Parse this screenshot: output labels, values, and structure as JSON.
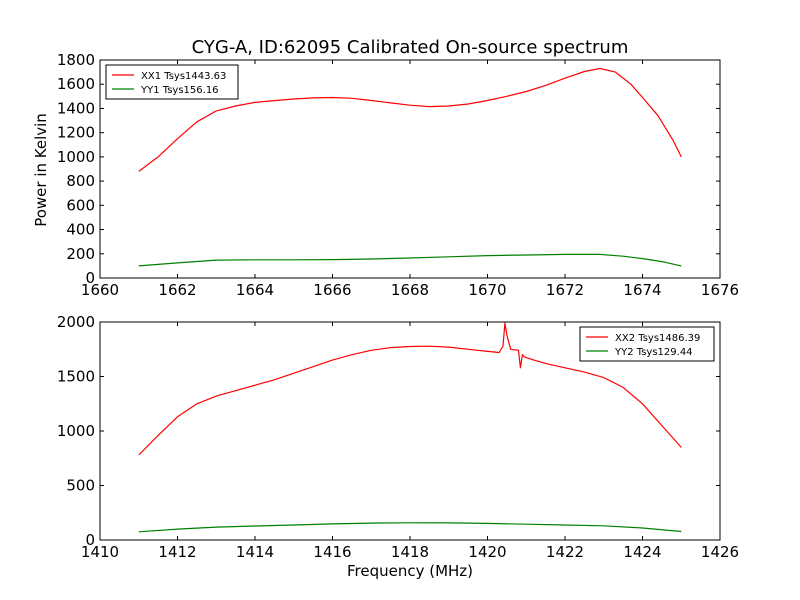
{
  "figure_title": "CYG-A, ID:62095 Calibrated On-source spectrum",
  "colors": {
    "red": "#ff0000",
    "green": "#008000",
    "axis": "#000000",
    "background": "#ffffff"
  },
  "chart_data": [
    {
      "type": "line",
      "title": "CYG-A, ID:62095 Calibrated On-source spectrum",
      "xlabel": "",
      "ylabel": "Power in Kelvin",
      "xlim": [
        1660,
        1676
      ],
      "ylim": [
        0,
        1800
      ],
      "xticks": [
        1660,
        1662,
        1664,
        1666,
        1668,
        1670,
        1672,
        1674,
        1676
      ],
      "yticks": [
        0,
        200,
        400,
        600,
        800,
        1000,
        1200,
        1400,
        1600,
        1800
      ],
      "grid": false,
      "legend_position": "top-left",
      "series": [
        {
          "name": "XX1 Tsys1443.63",
          "color": "#ff0000",
          "x": [
            1661.0,
            1661.5,
            1662.0,
            1662.5,
            1663.0,
            1663.5,
            1664.0,
            1664.5,
            1665.0,
            1665.5,
            1666.0,
            1666.5,
            1667.0,
            1667.5,
            1668.0,
            1668.5,
            1669.0,
            1669.5,
            1670.0,
            1670.5,
            1671.0,
            1671.5,
            1672.0,
            1672.5,
            1672.9,
            1673.3,
            1673.7,
            1674.0,
            1674.4,
            1674.8,
            1675.0
          ],
          "y": [
            880,
            1000,
            1150,
            1290,
            1380,
            1420,
            1450,
            1465,
            1478,
            1487,
            1490,
            1484,
            1466,
            1446,
            1427,
            1415,
            1420,
            1437,
            1466,
            1500,
            1540,
            1590,
            1650,
            1705,
            1730,
            1700,
            1600,
            1490,
            1340,
            1130,
            1000
          ]
        },
        {
          "name": "YY1 Tsys156.16",
          "color": "#008000",
          "x": [
            1661.0,
            1662.0,
            1663.0,
            1664.0,
            1665.0,
            1666.0,
            1667.0,
            1668.0,
            1669.0,
            1670.0,
            1671.0,
            1672.0,
            1672.9,
            1673.5,
            1674.0,
            1674.5,
            1675.0
          ],
          "y": [
            100,
            125,
            148,
            150,
            150,
            152,
            157,
            165,
            175,
            185,
            190,
            195,
            195,
            180,
            160,
            135,
            100
          ]
        }
      ]
    },
    {
      "type": "line",
      "title": "",
      "xlabel": "Frequency (MHz)",
      "ylabel": "",
      "xlim": [
        1410,
        1426
      ],
      "ylim": [
        0,
        2000
      ],
      "xticks": [
        1410,
        1412,
        1414,
        1416,
        1418,
        1420,
        1422,
        1424,
        1426
      ],
      "yticks": [
        0,
        500,
        1000,
        1500,
        2000
      ],
      "grid": false,
      "legend_position": "top-right",
      "series": [
        {
          "name": "XX2 Tsys1486.39",
          "color": "#ff0000",
          "x": [
            1411.0,
            1411.5,
            1412.0,
            1412.5,
            1413.0,
            1413.5,
            1414.0,
            1414.5,
            1415.0,
            1415.5,
            1416.0,
            1416.5,
            1417.0,
            1417.5,
            1418.0,
            1418.5,
            1419.0,
            1419.5,
            1420.0,
            1420.3,
            1420.4,
            1420.45,
            1420.5,
            1420.6,
            1420.8,
            1420.85,
            1420.9,
            1420.95,
            1421.2,
            1421.5,
            1422.0,
            1422.5,
            1423.0,
            1423.5,
            1424.0,
            1424.5,
            1425.0
          ],
          "y": [
            780,
            960,
            1130,
            1250,
            1320,
            1370,
            1420,
            1470,
            1530,
            1590,
            1650,
            1700,
            1740,
            1765,
            1775,
            1778,
            1770,
            1750,
            1730,
            1720,
            1780,
            1990,
            1880,
            1750,
            1740,
            1580,
            1700,
            1680,
            1650,
            1620,
            1580,
            1540,
            1490,
            1400,
            1250,
            1050,
            850
          ]
        },
        {
          "name": "YY2 Tsys129.44",
          "color": "#008000",
          "x": [
            1411.0,
            1412.0,
            1413.0,
            1414.0,
            1415.0,
            1416.0,
            1417.0,
            1418.0,
            1419.0,
            1420.0,
            1421.0,
            1422.0,
            1423.0,
            1424.0,
            1425.0
          ],
          "y": [
            75,
            100,
            118,
            128,
            138,
            148,
            155,
            158,
            157,
            152,
            145,
            138,
            130,
            110,
            78
          ]
        }
      ]
    }
  ]
}
